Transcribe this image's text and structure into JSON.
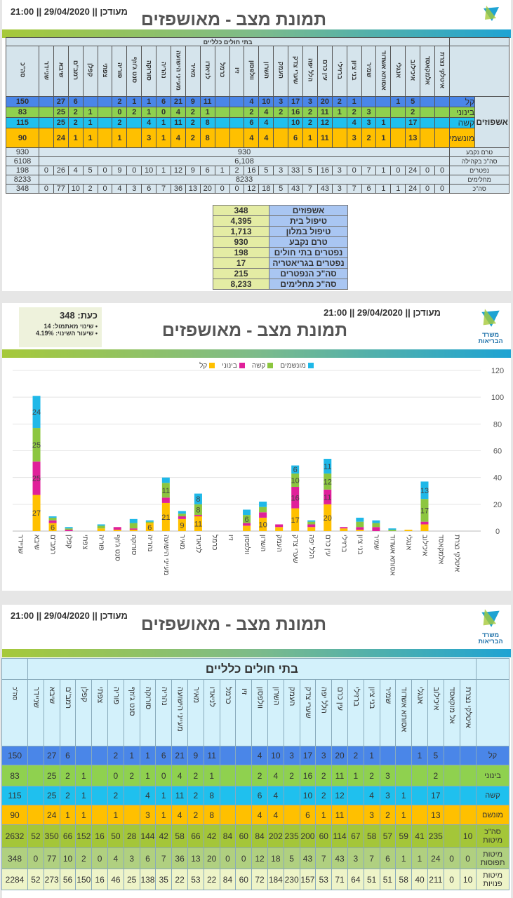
{
  "header": {
    "updated": "מעודכן || 29/04/2020 || 21:00",
    "title": "תמונת מצב - מאושפזים",
    "logo_text": "משרד הבריאות"
  },
  "colors": {
    "light": "#ffc000",
    "medium": "#e0209a",
    "severe": "#8cc63f",
    "ventilated": "#1fb8e8",
    "table_light": "#4a86e8",
    "table_medium": "#8fd14f",
    "table_severe": "#1fc0ee",
    "table_ventilated": "#ffc000"
  },
  "hospitals": [
    "שניידר",
    "שיבא",
    "רמב\"ם",
    "קפלן",
    "צפתי",
    "פוריה",
    "סנט ג'וזף",
    "סורוקה",
    "נהריה",
    "מעייני הישועה",
    "מאיר",
    "לניאדו",
    "כרמל",
    "זיו",
    "וולפסון",
    "השרון",
    "העמק",
    "שערי צדק",
    "הלל יפה",
    "עין כרם",
    "ברזילי",
    "בני ציון",
    "שמיר",
    "אסותא אשדוד",
    "אנגלי",
    "איכילוב",
    "אלמקאסד",
    "איטלקי נצרת"
  ],
  "table1": {
    "group_header": "בתי חולים כלליים",
    "total_header": "סה\"כ",
    "admitted_label": "אשפוזים",
    "rows": [
      {
        "label": "קל",
        "cls": "c-light",
        "total": "150",
        "values": [
          "",
          "27",
          "6",
          "",
          "",
          "2",
          "1",
          "1",
          "6",
          "21",
          "9",
          "11",
          "",
          "",
          "4",
          "10",
          "3",
          "17",
          "3",
          "20",
          "2",
          "1",
          "",
          "",
          "1",
          "5",
          "",
          ""
        ]
      },
      {
        "label": "בינוני",
        "cls": "c-mid",
        "total": "83",
        "values": [
          "",
          "25",
          "2",
          "1",
          "",
          "0",
          "2",
          "1",
          "0",
          "4",
          "2",
          "1",
          "",
          "",
          "2",
          "4",
          "2",
          "16",
          "2",
          "11",
          "1",
          "2",
          "3",
          "",
          "",
          "2",
          "",
          ""
        ]
      },
      {
        "label": "קשה",
        "cls": "c-hard",
        "total": "115",
        "values": [
          "",
          "25",
          "2",
          "1",
          "",
          "2",
          "",
          "4",
          "1",
          "11",
          "2",
          "8",
          "",
          "",
          "6",
          "4",
          "",
          "10",
          "2",
          "12",
          "",
          "4",
          "3",
          "1",
          "",
          "17",
          "",
          ""
        ]
      },
      {
        "label": "מונשמים",
        "cls": "c-vent",
        "total": "90",
        "values": [
          "",
          "24",
          "1",
          "1",
          "",
          "1",
          "",
          "3",
          "1",
          "4",
          "2",
          "8",
          "",
          "",
          "4",
          "4",
          "",
          "6",
          "1",
          "11",
          "",
          "3",
          "2",
          "1",
          "",
          "13",
          "",
          ""
        ]
      }
    ],
    "lower_rows": [
      {
        "label": "טרם נקבע",
        "total": "930",
        "merged": "930"
      },
      {
        "label": "סה\"כ בקהילה",
        "total": "6108",
        "merged": "6,108"
      },
      {
        "label": "נפטרים",
        "total": "198",
        "values": [
          "0",
          "26",
          "4",
          "5",
          "0",
          "9",
          "0",
          "10",
          "1",
          "12",
          "9",
          "6",
          "1",
          "2",
          "16",
          "5",
          "3",
          "33",
          "5",
          "16",
          "3",
          "0",
          "7",
          "1",
          "0",
          "24",
          "0",
          "0"
        ]
      },
      {
        "label": "מחלימים",
        "total": "8233",
        "merged": "8233"
      },
      {
        "label": "סה\"כ",
        "total": "348",
        "values": [
          "0",
          "77",
          "10",
          "2",
          "0",
          "4",
          "3",
          "6",
          "7",
          "36",
          "13",
          "20",
          "0",
          "0",
          "12",
          "18",
          "5",
          "43",
          "7",
          "43",
          "3",
          "7",
          "6",
          "1",
          "1",
          "24",
          "0",
          "0"
        ]
      }
    ]
  },
  "summary": [
    {
      "label": "אשפוזים",
      "value": "348"
    },
    {
      "label": "טיפול בית",
      "value": "4,395"
    },
    {
      "label": "טיפול במלון",
      "value": "1,713"
    },
    {
      "label": "טרם נקבע",
      "value": "930"
    },
    {
      "label": "נפטרים בתי חולים",
      "value": "198"
    },
    {
      "label": "נפטרים בגריאטריה",
      "value": "17"
    },
    {
      "label": "סה\"כ הנפטרים",
      "value": "215"
    },
    {
      "label": "סה\"כ מחלימים",
      "value": "8,233"
    }
  ],
  "info_box": {
    "now": "כעת: 348",
    "change": "• שינוי מאתמול: 14",
    "rate": "• שיעור השינוי: 4.19%"
  },
  "chart_data": {
    "type": "bar",
    "stacked": true,
    "categories": [
      "שניידר",
      "שיבא",
      "רמב\"ם",
      "קפלן",
      "צפתי",
      "פוריה",
      "סנט ג'וזף",
      "סורוקה",
      "נהריה",
      "מעייני הישועה",
      "מאיר",
      "לניאדו",
      "כרמל",
      "זיו",
      "וולפסון",
      "השרון",
      "העמק",
      "שערי צדק",
      "הלל יפה",
      "עין כרם",
      "ברזילי",
      "בני ציון",
      "שמיר",
      "אסותא אשדוד",
      "אנגלי",
      "איכילוב",
      "אלמקאסד",
      "איטלקי נצרת"
    ],
    "series": [
      {
        "name": "קל",
        "color": "#ffc000",
        "values": [
          0,
          27,
          6,
          0,
          0,
          2,
          1,
          1,
          6,
          21,
          9,
          11,
          0,
          0,
          4,
          10,
          3,
          17,
          3,
          20,
          2,
          1,
          0,
          0,
          1,
          5,
          0,
          0
        ]
      },
      {
        "name": "בינוני",
        "color": "#e0209a",
        "values": [
          0,
          25,
          2,
          1,
          0,
          0,
          2,
          1,
          0,
          4,
          2,
          1,
          0,
          0,
          2,
          4,
          2,
          16,
          2,
          11,
          1,
          2,
          3,
          0,
          0,
          2,
          0,
          0
        ]
      },
      {
        "name": "קשה",
        "color": "#8cc63f",
        "values": [
          0,
          25,
          2,
          1,
          0,
          2,
          0,
          4,
          1,
          11,
          2,
          8,
          0,
          0,
          6,
          4,
          0,
          10,
          2,
          12,
          0,
          4,
          3,
          1,
          0,
          17,
          0,
          0
        ]
      },
      {
        "name": "מונשמים",
        "color": "#1fb8e8",
        "values": [
          0,
          24,
          1,
          1,
          0,
          1,
          0,
          3,
          1,
          4,
          2,
          8,
          0,
          0,
          4,
          4,
          0,
          6,
          1,
          11,
          0,
          3,
          2,
          1,
          0,
          13,
          0,
          0
        ]
      }
    ],
    "ylim": [
      0,
      120
    ],
    "yticks": [
      "0",
      "20",
      "40",
      "60",
      "80",
      "100",
      "120"
    ],
    "grid": true,
    "legend": "top"
  },
  "table3": {
    "group_header": "בתי חולים כלליים",
    "total_header": "סה\"כ",
    "hospitals": [
      "שניידר",
      "שיבא",
      "רמב\"ם",
      "קפלן",
      "צפתי",
      "פוריה",
      "סנט ג'וזף",
      "סורוקה",
      "נהריה",
      "מעייני הישועה",
      "מאיר",
      "לניאדו",
      "כרמל",
      "זיו",
      "וולפסון",
      "השרון",
      "העמק",
      "שערי צדק",
      "הלל יפה",
      "עין כרם",
      "ברזילי",
      "בני ציון",
      "שמיר",
      "אסותא אשדוד",
      "אנגלי",
      "איכילוב",
      "אל מוקאסד",
      "איטלקי נצרת"
    ],
    "rows": [
      {
        "label": "קל",
        "cls": "c-light",
        "total": "150",
        "values": [
          "",
          "27",
          "6",
          "",
          "",
          "2",
          "1",
          "1",
          "6",
          "21",
          "9",
          "11",
          "",
          "",
          "4",
          "10",
          "3",
          "17",
          "3",
          "20",
          "2",
          "1",
          "",
          "",
          "1",
          "5",
          "",
          ""
        ]
      },
      {
        "label": "בינוני",
        "cls": "c-mid",
        "total": "83",
        "values": [
          "",
          "25",
          "2",
          "1",
          "",
          "0",
          "2",
          "1",
          "0",
          "4",
          "2",
          "1",
          "",
          "",
          "2",
          "4",
          "2",
          "16",
          "2",
          "11",
          "1",
          "2",
          "3",
          "",
          "",
          "2",
          "",
          ""
        ]
      },
      {
        "label": "קשה",
        "cls": "c-hard",
        "total": "115",
        "values": [
          "",
          "25",
          "2",
          "1",
          "",
          "2",
          "",
          "4",
          "1",
          "11",
          "2",
          "8",
          "",
          "",
          "6",
          "4",
          "",
          "10",
          "2",
          "12",
          "",
          "4",
          "3",
          "1",
          "",
          "17",
          "",
          ""
        ]
      },
      {
        "label": "מונשם",
        "cls": "c-vent",
        "total": "90",
        "values": [
          "",
          "24",
          "1",
          "1",
          "",
          "1",
          "",
          "3",
          "1",
          "4",
          "2",
          "8",
          "",
          "",
          "4",
          "4",
          "",
          "6",
          "1",
          "11",
          "",
          "3",
          "2",
          "1",
          "",
          "13",
          "",
          ""
        ]
      },
      {
        "label": "סה\"כ מיטות",
        "cls": "c-beds",
        "total": "2632",
        "values": [
          "52",
          "350",
          "66",
          "152",
          "16",
          "50",
          "28",
          "144",
          "42",
          "58",
          "66",
          "42",
          "84",
          "60",
          "84",
          "202",
          "235",
          "200",
          "60",
          "114",
          "67",
          "58",
          "57",
          "59",
          "41",
          "235",
          "",
          "10"
        ]
      },
      {
        "label": "מיטות תפוסות",
        "cls": "c-occ",
        "total": "348",
        "values": [
          "0",
          "77",
          "10",
          "2",
          "0",
          "4",
          "3",
          "6",
          "7",
          "36",
          "13",
          "20",
          "0",
          "0",
          "12",
          "18",
          "5",
          "43",
          "7",
          "43",
          "3",
          "7",
          "6",
          "1",
          "1",
          "24",
          "0",
          "0"
        ]
      },
      {
        "label": "מיטות פנויות",
        "cls": "c-free",
        "total": "2284",
        "values": [
          "52",
          "273",
          "56",
          "150",
          "16",
          "46",
          "25",
          "138",
          "35",
          "22",
          "53",
          "22",
          "84",
          "60",
          "72",
          "184",
          "230",
          "157",
          "53",
          "71",
          "64",
          "51",
          "51",
          "58",
          "40",
          "211",
          "0",
          "10"
        ]
      }
    ]
  }
}
